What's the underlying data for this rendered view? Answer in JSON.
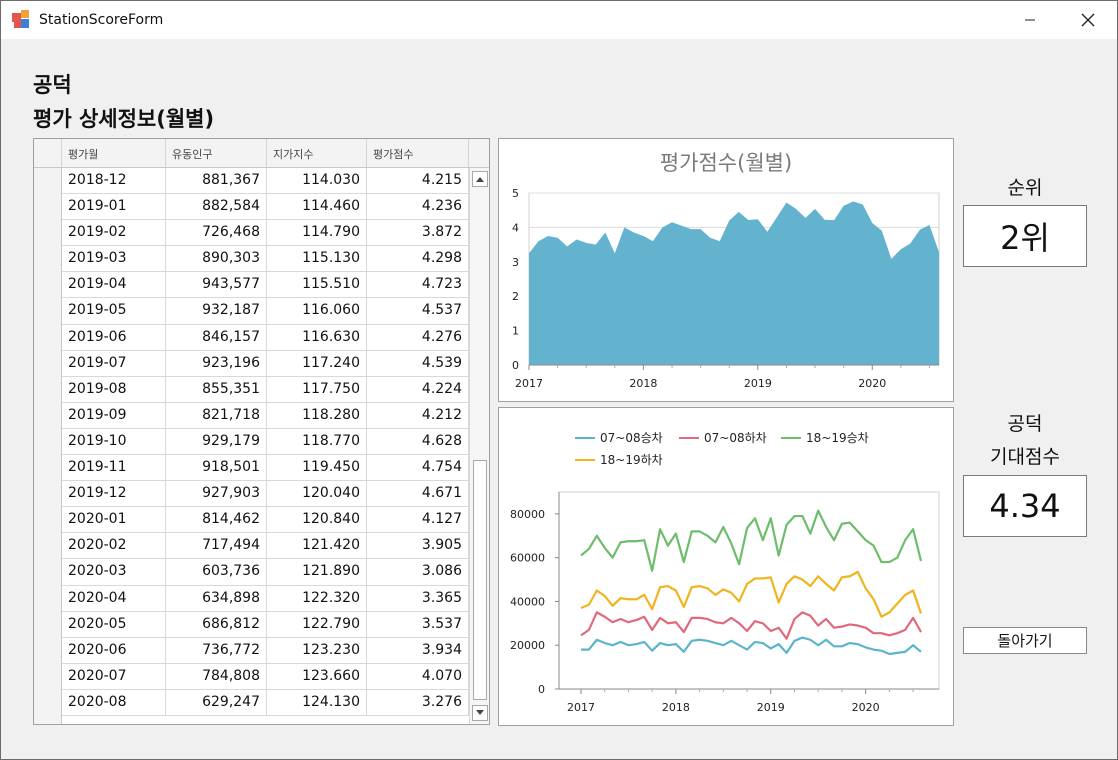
{
  "window": {
    "title": "StationScoreForm"
  },
  "header": {
    "station": "공덕",
    "subtitle": "평가 상세정보(월별)"
  },
  "grid": {
    "columns": [
      "평가월",
      "유동인구",
      "지가지수",
      "평가점수"
    ],
    "rows": [
      [
        "2018-12",
        "881,367",
        "114.030",
        "4.215"
      ],
      [
        "2019-01",
        "882,584",
        "114.460",
        "4.236"
      ],
      [
        "2019-02",
        "726,468",
        "114.790",
        "3.872"
      ],
      [
        "2019-03",
        "890,303",
        "115.130",
        "4.298"
      ],
      [
        "2019-04",
        "943,577",
        "115.510",
        "4.723"
      ],
      [
        "2019-05",
        "932,187",
        "116.060",
        "4.537"
      ],
      [
        "2019-06",
        "846,157",
        "116.630",
        "4.276"
      ],
      [
        "2019-07",
        "923,196",
        "117.240",
        "4.539"
      ],
      [
        "2019-08",
        "855,351",
        "117.750",
        "4.224"
      ],
      [
        "2019-09",
        "821,718",
        "118.280",
        "4.212"
      ],
      [
        "2019-10",
        "929,179",
        "118.770",
        "4.628"
      ],
      [
        "2019-11",
        "918,501",
        "119.450",
        "4.754"
      ],
      [
        "2019-12",
        "927,903",
        "120.040",
        "4.671"
      ],
      [
        "2020-01",
        "814,462",
        "120.840",
        "4.127"
      ],
      [
        "2020-02",
        "717,494",
        "121.420",
        "3.905"
      ],
      [
        "2020-03",
        "603,736",
        "121.890",
        "3.086"
      ],
      [
        "2020-04",
        "634,898",
        "122.320",
        "3.365"
      ],
      [
        "2020-05",
        "686,812",
        "122.790",
        "3.537"
      ],
      [
        "2020-06",
        "736,772",
        "123.230",
        "3.934"
      ],
      [
        "2020-07",
        "784,808",
        "123.660",
        "4.070"
      ],
      [
        "2020-08",
        "629,247",
        "124.130",
        "3.276"
      ]
    ]
  },
  "rank": {
    "label": "순위",
    "value": "2위"
  },
  "expected": {
    "label_line1": "공덕",
    "label_line2": "기대점수",
    "value": "4.34"
  },
  "back_button": {
    "label": "돌아가기"
  },
  "chart_data": [
    {
      "type": "area",
      "title": "평가점수(월별)",
      "color": "#63b3cf",
      "ylim": [
        0,
        5
      ],
      "yticks": [
        0,
        1,
        2,
        3,
        4,
        5
      ],
      "xticks": [
        "2017",
        "2018",
        "2019",
        "2020"
      ],
      "x": [
        "2017-01",
        "2017-02",
        "2017-03",
        "2017-04",
        "2017-05",
        "2017-06",
        "2017-07",
        "2017-08",
        "2017-09",
        "2017-10",
        "2017-11",
        "2017-12",
        "2018-01",
        "2018-02",
        "2018-03",
        "2018-04",
        "2018-05",
        "2018-06",
        "2018-07",
        "2018-08",
        "2018-09",
        "2018-10",
        "2018-11",
        "2018-12",
        "2019-01",
        "2019-02",
        "2019-03",
        "2019-04",
        "2019-05",
        "2019-06",
        "2019-07",
        "2019-08",
        "2019-09",
        "2019-10",
        "2019-11",
        "2019-12",
        "2020-01",
        "2020-02",
        "2020-03",
        "2020-04",
        "2020-05",
        "2020-06",
        "2020-07",
        "2020-08"
      ],
      "values": [
        3.25,
        3.6,
        3.75,
        3.7,
        3.45,
        3.65,
        3.55,
        3.5,
        3.85,
        3.25,
        4.0,
        3.85,
        3.75,
        3.6,
        4.0,
        4.15,
        4.05,
        3.95,
        3.95,
        3.7,
        3.6,
        4.2,
        4.45,
        4.215,
        4.236,
        3.872,
        4.298,
        4.723,
        4.537,
        4.276,
        4.539,
        4.224,
        4.212,
        4.628,
        4.754,
        4.671,
        4.127,
        3.905,
        3.086,
        3.365,
        3.537,
        3.934,
        4.07,
        3.276
      ]
    },
    {
      "type": "line",
      "ylim": [
        0,
        90000
      ],
      "yticks": [
        0,
        20000,
        40000,
        60000,
        80000
      ],
      "xticks": [
        "2017",
        "2018",
        "2019",
        "2020"
      ],
      "x": [
        "2017-01",
        "2017-02",
        "2017-03",
        "2017-04",
        "2017-05",
        "2017-06",
        "2017-07",
        "2017-08",
        "2017-09",
        "2017-10",
        "2017-11",
        "2017-12",
        "2018-01",
        "2018-02",
        "2018-03",
        "2018-04",
        "2018-05",
        "2018-06",
        "2018-07",
        "2018-08",
        "2018-09",
        "2018-10",
        "2018-11",
        "2018-12",
        "2019-01",
        "2019-02",
        "2019-03",
        "2019-04",
        "2019-05",
        "2019-06",
        "2019-07",
        "2019-08",
        "2019-09",
        "2019-10",
        "2019-11",
        "2019-12",
        "2020-01",
        "2020-02",
        "2020-03",
        "2020-04",
        "2020-05",
        "2020-06",
        "2020-07",
        "2020-08"
      ],
      "series": [
        {
          "name": "07~08승차",
          "color": "#5ab4cc",
          "values": [
            18000,
            18000,
            22500,
            21000,
            20000,
            21500,
            20000,
            20500,
            21500,
            17500,
            21000,
            20000,
            20500,
            17000,
            22000,
            22500,
            22000,
            21000,
            20000,
            22000,
            20000,
            18000,
            21500,
            21000,
            18500,
            20500,
            16500,
            22000,
            23500,
            22500,
            20000,
            22500,
            19500,
            19500,
            21000,
            20500,
            19000,
            18000,
            17500,
            16000,
            16500,
            17000,
            20000,
            17000
          ]
        },
        {
          "name": "07~08하차",
          "color": "#e06a7c",
          "values": [
            24500,
            27000,
            35000,
            33000,
            30500,
            32000,
            30500,
            31500,
            33000,
            27000,
            32500,
            30000,
            30500,
            26000,
            32500,
            32500,
            32000,
            30500,
            30000,
            32500,
            30000,
            26500,
            31000,
            30000,
            26500,
            28000,
            23000,
            32000,
            35000,
            33500,
            29000,
            32000,
            28000,
            28500,
            29500,
            29000,
            28000,
            25500,
            25500,
            24500,
            25500,
            27000,
            32500,
            26000
          ]
        },
        {
          "name": "18~19승차",
          "color": "#6cbd6c",
          "values": [
            61000,
            64000,
            70000,
            64500,
            60000,
            67000,
            67500,
            67500,
            68000,
            54000,
            73000,
            65500,
            71000,
            58000,
            72000,
            72000,
            70000,
            67000,
            74000,
            66500,
            57000,
            73500,
            78000,
            68000,
            78000,
            61000,
            75000,
            79000,
            79000,
            71000,
            81500,
            74000,
            68000,
            75500,
            76000,
            72000,
            68000,
            65500,
            58000,
            58000,
            60000,
            68000,
            73000,
            58500
          ]
        },
        {
          "name": "18~19하차",
          "color": "#f0b41e",
          "values": [
            37000,
            38500,
            45000,
            42500,
            38000,
            41500,
            41000,
            41000,
            43000,
            36500,
            46500,
            47000,
            45000,
            37500,
            46500,
            47000,
            46000,
            43000,
            45500,
            44000,
            40000,
            48000,
            50500,
            50500,
            51000,
            39500,
            48000,
            51500,
            50000,
            47000,
            51500,
            48000,
            45000,
            51000,
            51500,
            53500,
            46000,
            41000,
            33000,
            35000,
            39000,
            43000,
            45000,
            34500
          ]
        }
      ]
    }
  ]
}
